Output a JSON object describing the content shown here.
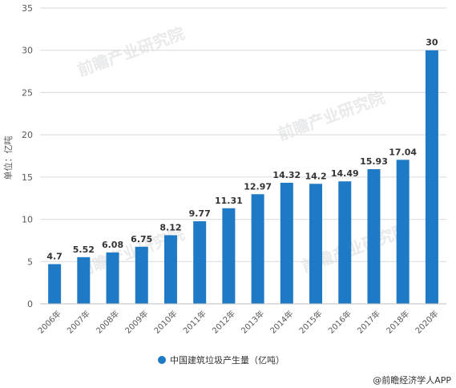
{
  "chart_data": {
    "type": "bar",
    "categories": [
      "2006年",
      "2007年",
      "2008年",
      "2009年",
      "2010年",
      "2011年",
      "2012年",
      "2013年",
      "2014年",
      "2015年",
      "2016年",
      "2017年",
      "2018年",
      "2020年"
    ],
    "series": [
      {
        "name": "中国建筑垃圾产生量（亿吨）",
        "values": [
          4.7,
          5.52,
          6.08,
          6.75,
          8.12,
          9.77,
          11.31,
          12.97,
          14.32,
          14.2,
          14.49,
          15.93,
          17.04,
          30
        ],
        "color": "#1f7ac6"
      }
    ],
    "data_labels": [
      "4.7",
      "5.52",
      "6.08",
      "6.75",
      "8.12",
      "9.77",
      "11.31",
      "12.97",
      "14.32",
      "14.2",
      "14.49",
      "15.93",
      "17.04",
      "30"
    ],
    "ylabel": "单位：亿吨",
    "ylim": [
      0,
      35
    ],
    "yticks": [
      0,
      5,
      10,
      15,
      20,
      25,
      30,
      35
    ],
    "grid": true,
    "legend_position": "bottom"
  },
  "source": "@前瞻经济学人APP",
  "watermark": "前瞻产业研究院"
}
